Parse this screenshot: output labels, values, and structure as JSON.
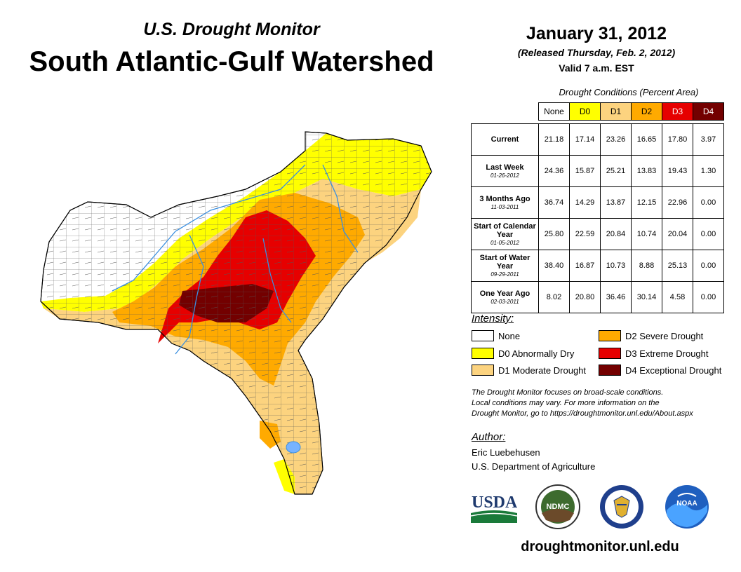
{
  "header": {
    "subtitle": "U.S. Drought Monitor",
    "title": "South Atlantic-Gulf Watershed",
    "date": "January 31, 2012",
    "released": "(Released Thursday, Feb. 2, 2012)",
    "valid": "Valid 7 a.m. EST"
  },
  "table": {
    "caption": "Drought Conditions (Percent Area)",
    "columns": [
      "None",
      "D0",
      "D1",
      "D2",
      "D3",
      "D4"
    ],
    "column_colors": [
      "#ffffff",
      "#ffff00",
      "#fcd37f",
      "#ffaa00",
      "#e60000",
      "#730000"
    ],
    "rows": [
      {
        "label": "Current",
        "date": "",
        "values": [
          "21.18",
          "17.14",
          "23.26",
          "16.65",
          "17.80",
          "3.97"
        ]
      },
      {
        "label": "Last Week",
        "date": "01-26-2012",
        "values": [
          "24.36",
          "15.87",
          "25.21",
          "13.83",
          "19.43",
          "1.30"
        ]
      },
      {
        "label": "3 Months Ago",
        "date": "11-03-2011",
        "values": [
          "36.74",
          "14.29",
          "13.87",
          "12.15",
          "22.96",
          "0.00"
        ]
      },
      {
        "label": "Start of Calendar Year",
        "date": "01-05-2012",
        "values": [
          "25.80",
          "22.59",
          "20.84",
          "10.74",
          "20.04",
          "0.00"
        ]
      },
      {
        "label": "Start of Water Year",
        "date": "09-29-2011",
        "values": [
          "38.40",
          "16.87",
          "10.73",
          "8.88",
          "25.13",
          "0.00"
        ]
      },
      {
        "label": "One Year Ago",
        "date": "02-03-2011",
        "values": [
          "8.02",
          "20.80",
          "36.46",
          "30.14",
          "4.58",
          "0.00"
        ]
      }
    ]
  },
  "legend": {
    "heading": "Intensity:",
    "items": [
      {
        "label": "None",
        "color": "#ffffff"
      },
      {
        "label": "D0 Abnormally Dry",
        "color": "#ffff00"
      },
      {
        "label": "D1 Moderate Drought",
        "color": "#fcd37f"
      },
      {
        "label": "D2 Severe Drought",
        "color": "#ffaa00"
      },
      {
        "label": "D3 Extreme Drought",
        "color": "#e60000"
      },
      {
        "label": "D4 Exceptional Drought",
        "color": "#730000"
      }
    ]
  },
  "note": {
    "line1": "The Drought Monitor focuses on broad-scale conditions.",
    "line2": "Local conditions may vary. For more information on the",
    "line3": "Drought Monitor, go to https://droughtmonitor.unl.edu/About.aspx"
  },
  "author": {
    "heading": "Author:",
    "name": "Eric Luebehusen",
    "org": "U.S. Department of Agriculture"
  },
  "logos": {
    "usda": "USDA",
    "ndmc": "NDMC",
    "noaa": "NOAA"
  },
  "footer": {
    "site": "droughtmonitor.unl.edu"
  }
}
